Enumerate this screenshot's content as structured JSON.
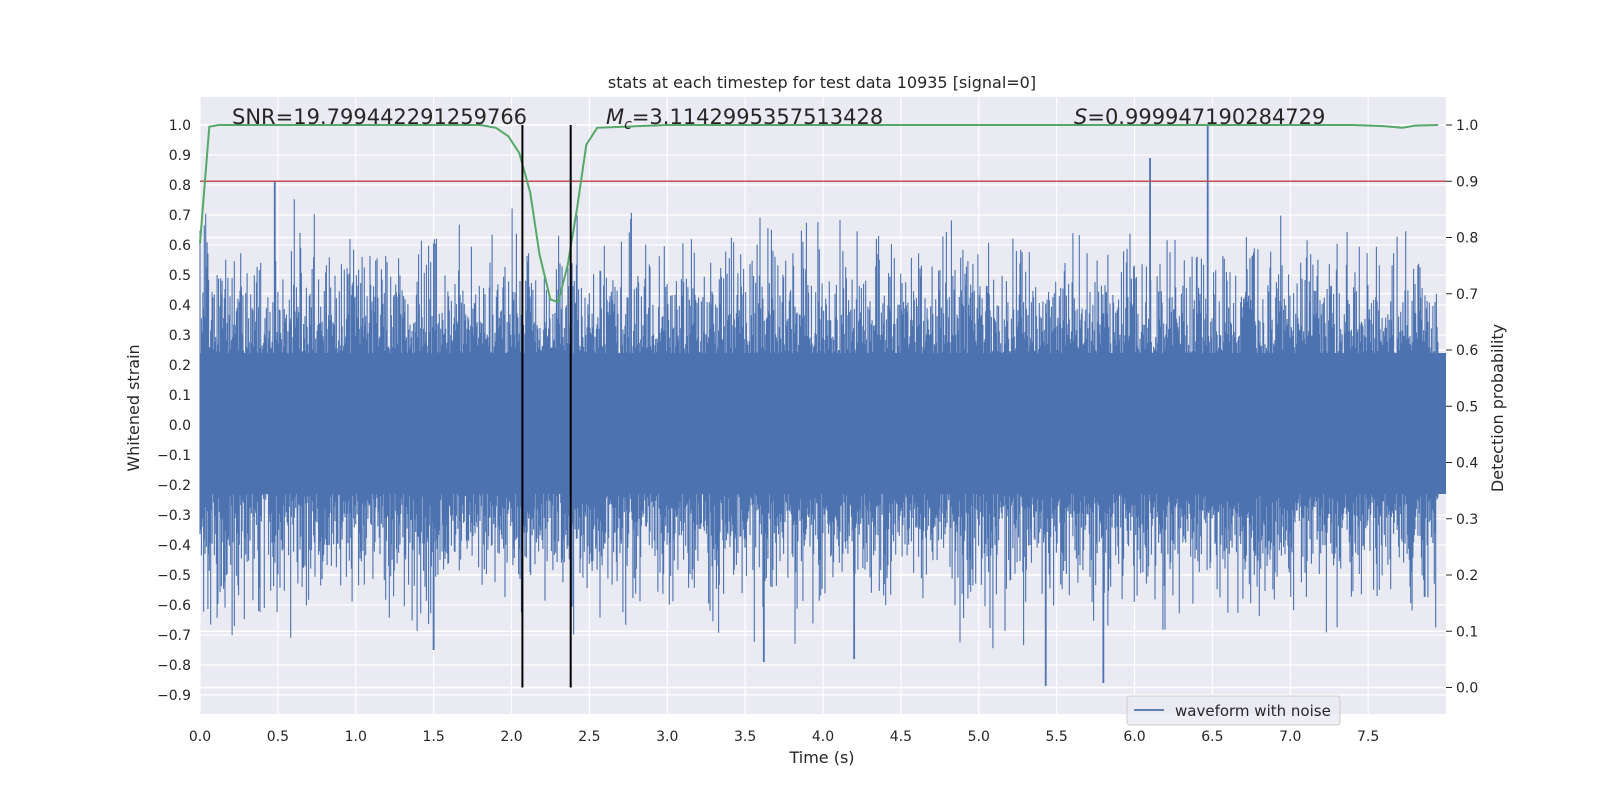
{
  "chart_data": {
    "type": "line",
    "title": "stats at each timestep for test data 10935 [signal=0]",
    "xlabel": "Time (s)",
    "ylabel": "Whitened strain",
    "y2label": "Detection probability",
    "xlim": [
      0.0,
      8.0
    ],
    "ylim": [
      -0.95,
      1.08
    ],
    "y2lim": [
      -0.045,
      1.035
    ],
    "x_ticks": [
      "0.0",
      "0.5",
      "1.0",
      "1.5",
      "2.0",
      "2.5",
      "3.0",
      "3.5",
      "4.0",
      "4.5",
      "5.0",
      "5.5",
      "6.0",
      "6.5",
      "7.0",
      "7.5"
    ],
    "y_ticks": [
      "−0.9",
      "−0.8",
      "−0.7",
      "−0.6",
      "−0.5",
      "−0.4",
      "−0.3",
      "−0.2",
      "−0.1",
      "0.0",
      "0.1",
      "0.2",
      "0.3",
      "0.4",
      "0.5",
      "0.6",
      "0.7",
      "0.8",
      "0.9",
      "1.0"
    ],
    "y2_ticks": [
      "0.0",
      "0.1",
      "0.2",
      "0.3",
      "0.4",
      "0.5",
      "0.6",
      "0.7",
      "0.8",
      "0.9",
      "1.0"
    ],
    "grid": true,
    "legend_position": "lower-right",
    "colors": {
      "waveform": "#4c72b0",
      "probability": "#55a868",
      "threshold": "#c44e52",
      "markers": "#000000",
      "background": "#eaeaf2",
      "grid": "#ffffff"
    },
    "series": [
      {
        "name": "waveform with noise",
        "axis": "left",
        "note_peaks": [
          {
            "x": 0.48,
            "y": 0.81
          },
          {
            "x": 1.5,
            "y": -0.75
          },
          {
            "x": 3.62,
            "y": -0.79
          },
          {
            "x": 4.2,
            "y": -0.78
          },
          {
            "x": 5.43,
            "y": -0.87
          },
          {
            "x": 5.8,
            "y": -0.86
          },
          {
            "x": 6.1,
            "y": 0.89
          },
          {
            "x": 6.47,
            "y": 1.0
          }
        ]
      },
      {
        "axis": "right",
        "x": [
          0.0,
          0.06,
          0.12,
          0.5,
          1.0,
          1.5,
          1.8,
          1.9,
          1.98,
          2.05,
          2.12,
          2.18,
          2.25,
          2.3,
          2.36,
          2.42,
          2.48,
          2.55,
          3.0,
          4.0,
          5.0,
          6.0,
          7.0,
          7.4,
          7.6,
          7.72,
          7.8,
          7.95
        ],
        "y": [
          0.79,
          0.997,
          1.0,
          1.0,
          1.0,
          1.0,
          1.0,
          0.995,
          0.98,
          0.95,
          0.88,
          0.77,
          0.69,
          0.685,
          0.75,
          0.85,
          0.965,
          0.995,
          1.0,
          1.0,
          1.0,
          1.0,
          1.0,
          1.0,
          0.998,
          0.995,
          0.999,
          1.0
        ]
      }
    ],
    "threshold": {
      "axis": "right",
      "y": 0.9
    },
    "vertical_markers": [
      2.07,
      2.38
    ],
    "annotations": [
      {
        "key": "snr",
        "text": "SNR=19.799442291259766"
      },
      {
        "key": "mc",
        "prefix": "M",
        "subscript": "c",
        "text": "=3.1142995357513428"
      },
      {
        "key": "s",
        "prefix": "S",
        "text": "=0.999947190284729"
      }
    ],
    "legend": [
      "waveform with noise"
    ]
  }
}
